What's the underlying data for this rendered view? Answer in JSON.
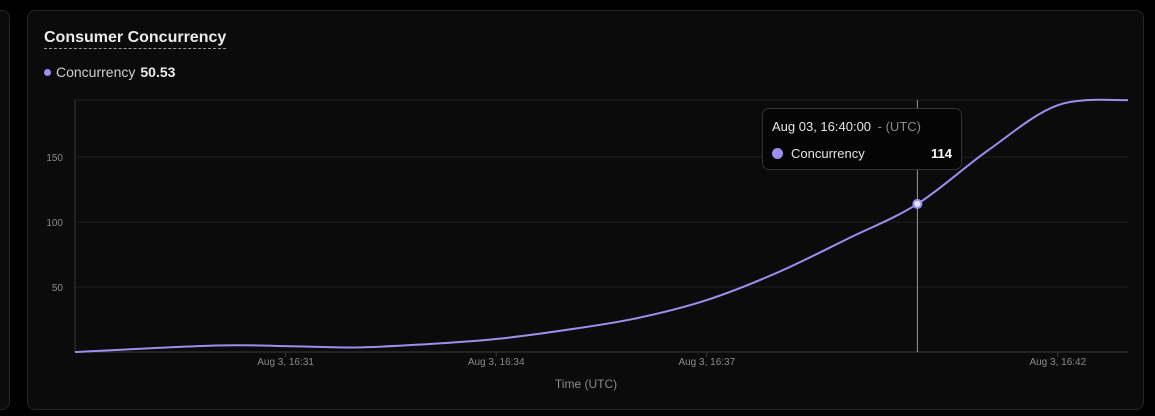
{
  "card": {
    "title": "Consumer Concurrency"
  },
  "legend": {
    "series_name": "Concurrency",
    "value": "50.53"
  },
  "tooltip": {
    "time": "Aug 03, 16:40:00",
    "timezone": "- (UTC)",
    "series_name": "Concurrency",
    "value": "114"
  },
  "colors": {
    "series": "#9b8ff0",
    "background": "#0b0b0b",
    "grid": "#1f1f1f",
    "axis": "#3a3a3a"
  },
  "chart_data": {
    "type": "line",
    "title": "Consumer Concurrency",
    "xlabel": "Time (UTC)",
    "ylabel": "",
    "x_unit": "minutes",
    "xlim": [
      "Aug 3, 16:28",
      "Aug 3, 16:43"
    ],
    "ylim": [
      0,
      194
    ],
    "yticks": [
      50,
      100,
      150
    ],
    "xticks": [
      {
        "t": "Aug 3, 16:31",
        "label": "Aug 3, 16:31"
      },
      {
        "t": "Aug 3, 16:34",
        "label": "Aug 3, 16:34"
      },
      {
        "t": "Aug 3, 16:37",
        "label": "Aug 3, 16:37"
      },
      {
        "t": "Aug 3, 16:42",
        "label": "Aug 3, 16:42"
      }
    ],
    "grid": true,
    "series": [
      {
        "name": "Concurrency",
        "points": [
          {
            "t": "Aug 3, 16:28",
            "y": 0
          },
          {
            "t": "Aug 3, 16:30",
            "y": 5
          },
          {
            "t": "Aug 3, 16:31",
            "y": 4.5
          },
          {
            "t": "Aug 3, 16:32",
            "y": 3.5
          },
          {
            "t": "Aug 3, 16:33",
            "y": 6
          },
          {
            "t": "Aug 3, 16:34",
            "y": 10
          },
          {
            "t": "Aug 3, 16:35",
            "y": 17
          },
          {
            "t": "Aug 3, 16:36",
            "y": 26
          },
          {
            "t": "Aug 3, 16:37",
            "y": 40
          },
          {
            "t": "Aug 3, 16:38",
            "y": 61
          },
          {
            "t": "Aug 3, 16:39",
            "y": 87
          },
          {
            "t": "Aug 3, 16:40",
            "y": 114
          },
          {
            "t": "Aug 3, 16:41",
            "y": 155
          },
          {
            "t": "Aug 3, 16:42",
            "y": 190
          },
          {
            "t": "Aug 3, 16:43",
            "y": 194
          }
        ]
      }
    ],
    "hover": {
      "t": "Aug 3, 16:40",
      "y": 114
    }
  }
}
